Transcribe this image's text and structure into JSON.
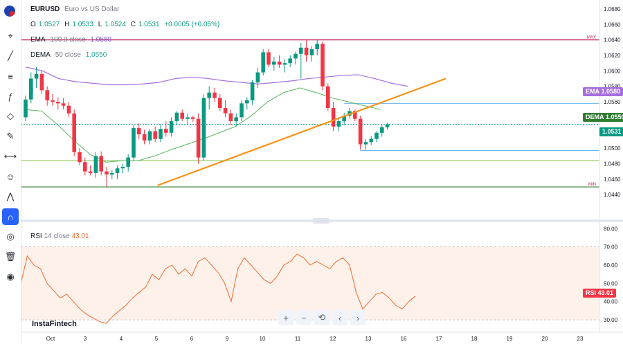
{
  "header": {
    "symbol": "EURUSD",
    "description": "Euro vs US Dollar",
    "ohlc": {
      "o_label": "O",
      "o": "1.0527",
      "h_label": "H",
      "h": "1.0533",
      "l_label": "L",
      "l": "1.0524",
      "c_label": "C",
      "c": "1.0531",
      "change": "+0.0005 (+0.05%)"
    }
  },
  "indicators": {
    "ema": {
      "name": "EMA",
      "params": "100 0 close",
      "value": "1.0580"
    },
    "dema": {
      "name": "DEMA",
      "params": "50 close",
      "value": "1.0550"
    },
    "rsi": {
      "name": "RSI",
      "params": "14 close",
      "value": "43.01"
    }
  },
  "tags": {
    "ema": "EMA",
    "ema_v": "1.0580",
    "dema": "DEMA",
    "dema_v": "1.0550",
    "price": "1.0531",
    "rsi": "RSI",
    "rsi_v": "43.01"
  },
  "markers": {
    "max": "MAX",
    "min": "MIN"
  },
  "brand": "InstaFintech",
  "nav": {
    "zoom_in": "+",
    "zoom_out": "−",
    "reset": "⟲",
    "left": "‹",
    "right": "›"
  },
  "colors": {
    "up": "#089981",
    "down": "#f23645",
    "ema": "#a66ee0",
    "dema": "#66bb6a",
    "trend": "#f7931a",
    "rsi": "#f26b2f",
    "max_line": "#c2185b",
    "min_line": "#2e7d32"
  },
  "toolbar_icons": [
    "crosshair-icon",
    "trendline-icon",
    "fib-icon",
    "function-icon",
    "pattern-icon",
    "brush-icon",
    "ruler-icon",
    "emoji-icon",
    "chart-icon",
    "magnet-icon",
    "eye-icon",
    "trash-icon",
    "camera-icon"
  ],
  "chart_data": {
    "type": "candlestick",
    "price_axis": {
      "ticks": [
        "1.0680",
        "1.0660",
        "1.0640",
        "1.0620",
        "1.0600",
        "1.0580",
        "1.0560",
        "1.0540",
        "1.0520",
        "1.0500",
        "1.0480",
        "1.0460",
        "1.0440"
      ],
      "range": [
        1.0425,
        1.0688
      ]
    },
    "rsi_axis": {
      "ticks": [
        "80.00",
        "70.00",
        "60.00",
        "50.00",
        "40.00",
        "30.00"
      ],
      "range": [
        27,
        82
      ],
      "band": [
        30,
        70
      ]
    },
    "time_labels": [
      "Oct",
      "3",
      "4",
      "5",
      "6",
      "9",
      "10",
      "11",
      "12",
      "13",
      "16",
      "17",
      "18",
      "19",
      "20",
      "23"
    ],
    "levels": {
      "max": 1.064,
      "min": 1.045,
      "upper_h": 1.0558,
      "lower_h": 1.0484,
      "support": 1.0497,
      "last": 1.0531
    },
    "trendline": {
      "from": {
        "bar": 11,
        "value": 1.0452
      },
      "to": {
        "bar": 75,
        "value": 1.059
      }
    },
    "candles": [
      [
        1.054,
        1.0568,
        1.0535,
        1.0563
      ],
      [
        1.0563,
        1.0598,
        1.0558,
        1.059
      ],
      [
        1.059,
        1.0605,
        1.0578,
        1.0596
      ],
      [
        1.0596,
        1.06,
        1.057,
        1.0575
      ],
      [
        1.0575,
        1.058,
        1.0555,
        1.0562
      ],
      [
        1.0562,
        1.057,
        1.0555,
        1.056
      ],
      [
        1.056,
        1.0566,
        1.055,
        1.0558
      ],
      [
        1.0558,
        1.0565,
        1.055,
        1.0555
      ],
      [
        1.0555,
        1.056,
        1.054,
        1.0545
      ],
      [
        1.0545,
        1.055,
        1.049,
        1.0495
      ],
      [
        1.0495,
        1.05,
        1.0478,
        1.0482
      ],
      [
        1.0482,
        1.0488,
        1.0465,
        1.047
      ],
      [
        1.047,
        1.0478,
        1.0465,
        1.0468
      ],
      [
        1.0468,
        1.0495,
        1.0462,
        1.049
      ],
      [
        1.049,
        1.0496,
        1.0465,
        1.047
      ],
      [
        1.047,
        1.0476,
        1.045,
        1.0466
      ],
      [
        1.0466,
        1.0472,
        1.046,
        1.0468
      ],
      [
        1.0468,
        1.0478,
        1.046,
        1.0474
      ],
      [
        1.0474,
        1.048,
        1.0468,
        1.0476
      ],
      [
        1.0476,
        1.0492,
        1.047,
        1.0488
      ],
      [
        1.0488,
        1.053,
        1.0484,
        1.0526
      ],
      [
        1.0526,
        1.0532,
        1.0512,
        1.0518
      ],
      [
        1.0518,
        1.0524,
        1.0505,
        1.051
      ],
      [
        1.051,
        1.0525,
        1.0505,
        1.0522
      ],
      [
        1.0522,
        1.0528,
        1.0508,
        1.0512
      ],
      [
        1.0512,
        1.053,
        1.0508,
        1.0525
      ],
      [
        1.0525,
        1.0535,
        1.0515,
        1.052
      ],
      [
        1.052,
        1.054,
        1.0515,
        1.0535
      ],
      [
        1.0535,
        1.0548,
        1.053,
        1.0546
      ],
      [
        1.0546,
        1.055,
        1.0535,
        1.0538
      ],
      [
        1.0538,
        1.0545,
        1.053,
        1.054
      ],
      [
        1.054,
        1.0542,
        1.0534,
        1.0538
      ],
      [
        1.0538,
        1.0545,
        1.048,
        1.0488
      ],
      [
        1.0488,
        1.057,
        1.0484,
        1.0565
      ],
      [
        1.0565,
        1.058,
        1.055,
        1.0572
      ],
      [
        1.0572,
        1.0578,
        1.056,
        1.0565
      ],
      [
        1.0565,
        1.057,
        1.0548,
        1.0552
      ],
      [
        1.0552,
        1.0562,
        1.054,
        1.0545
      ],
      [
        1.0545,
        1.055,
        1.053,
        1.0535
      ],
      [
        1.0535,
        1.0545,
        1.0528,
        1.054
      ],
      [
        1.054,
        1.0562,
        1.0535,
        1.0558
      ],
      [
        1.0558,
        1.0566,
        1.055,
        1.0562
      ],
      [
        1.0562,
        1.0588,
        1.0556,
        1.0585
      ],
      [
        1.0585,
        1.0604,
        1.0578,
        1.0598
      ],
      [
        1.0598,
        1.0628,
        1.0594,
        1.0624
      ],
      [
        1.0624,
        1.0628,
        1.0605,
        1.0608
      ],
      [
        1.0608,
        1.0618,
        1.06,
        1.0612
      ],
      [
        1.0612,
        1.062,
        1.0604,
        1.0608
      ],
      [
        1.0608,
        1.0615,
        1.0598,
        1.061
      ],
      [
        1.061,
        1.062,
        1.0605,
        1.0616
      ],
      [
        1.0616,
        1.0625,
        1.0608,
        1.0622
      ],
      [
        1.0622,
        1.0636,
        1.059,
        1.063
      ],
      [
        1.063,
        1.064,
        1.0612,
        1.062
      ],
      [
        1.062,
        1.0632,
        1.0612,
        1.0628
      ],
      [
        1.0628,
        1.064,
        1.062,
        1.0635
      ],
      [
        1.0635,
        1.0638,
        1.0575,
        1.058
      ],
      [
        1.058,
        1.0584,
        1.0548,
        1.0552
      ],
      [
        1.0552,
        1.056,
        1.0522,
        1.0528
      ],
      [
        1.0528,
        1.054,
        1.0522,
        1.0535
      ],
      [
        1.0535,
        1.0546,
        1.053,
        1.0542
      ],
      [
        1.0542,
        1.0552,
        1.0538,
        1.0548
      ],
      [
        1.0548,
        1.055,
        1.0535,
        1.0538
      ],
      [
        1.0538,
        1.0542,
        1.0498,
        1.0505
      ],
      [
        1.0505,
        1.0512,
        1.0498,
        1.0508
      ],
      [
        1.0508,
        1.0516,
        1.0504,
        1.0512
      ],
      [
        1.0512,
        1.0522,
        1.0508,
        1.052
      ],
      [
        1.052,
        1.053,
        1.0515,
        1.0527
      ],
      [
        1.0527,
        1.0533,
        1.0524,
        1.0531
      ]
    ],
    "ema100": [
      1.0605,
      1.06,
      1.059,
      1.0586,
      1.0584,
      1.0582,
      1.0582,
      1.0583,
      1.0585,
      1.059,
      1.0592,
      1.059,
      1.0587,
      1.0585,
      1.0583,
      1.0585,
      1.0587,
      1.059,
      1.0592,
      1.0594,
      1.0595,
      1.059,
      1.0584,
      1.058
    ],
    "dema50": [
      1.055,
      1.0548,
      1.053,
      1.051,
      1.0492,
      1.0482,
      1.0484,
      1.0484,
      1.049,
      1.0498,
      1.0505,
      1.0512,
      1.052,
      1.0528,
      1.0542,
      1.056,
      1.0572,
      1.0578,
      1.0572,
      1.0565,
      1.056,
      1.0555,
      1.055
    ],
    "rsi": [
      50,
      65,
      60,
      58,
      50,
      46,
      42,
      44,
      40,
      36,
      33,
      31,
      29,
      28,
      32,
      35,
      38,
      42,
      45,
      48,
      55,
      52,
      58,
      60,
      55,
      58,
      54,
      62,
      64,
      60,
      56,
      50,
      40,
      58,
      64,
      60,
      56,
      52,
      50,
      54,
      60,
      62,
      66,
      64,
      60,
      62,
      60,
      58,
      62,
      64,
      60,
      45,
      36,
      40,
      44,
      45,
      42,
      38,
      36,
      40,
      43
    ]
  }
}
